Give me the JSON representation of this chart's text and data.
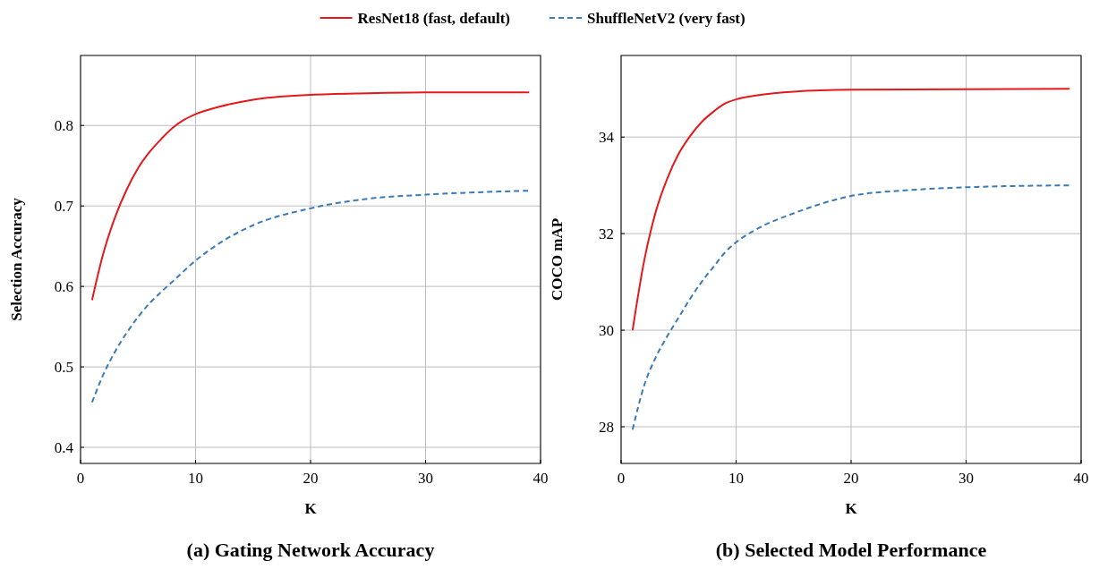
{
  "chart_data": [
    {
      "type": "line",
      "title": "(a) Gating Network Accuracy",
      "xlabel": "K",
      "ylabel": "Selection Accuracy",
      "xlim": [
        0,
        40
      ],
      "xticks": [
        0,
        10,
        20,
        30,
        40
      ],
      "ylim": [
        0.38,
        0.887
      ],
      "yticks": [
        0.4,
        0.5,
        0.6,
        0.7,
        0.8
      ],
      "grid": true,
      "legend": "top",
      "series": [
        {
          "name": "ResNet18 (fast, default)",
          "color": "#e3191c",
          "line_style": "solid",
          "x": [
            1,
            2,
            3,
            4,
            5,
            6,
            7,
            8,
            9,
            10,
            12,
            15,
            20,
            25,
            30,
            39
          ],
          "values": [
            0.583,
            0.642,
            0.686,
            0.72,
            0.747,
            0.767,
            0.783,
            0.797,
            0.807,
            0.814,
            0.823,
            0.832,
            0.838,
            0.84,
            0.841,
            0.841
          ]
        },
        {
          "name": "ShuffleNetV2 (very fast)",
          "color": "#3a7ab5",
          "line_style": "dashed",
          "x": [
            1,
            2,
            3,
            4,
            5,
            6,
            7,
            8,
            10,
            12,
            15,
            20,
            25,
            30,
            39
          ],
          "values": [
            0.456,
            0.491,
            0.519,
            0.542,
            0.562,
            0.579,
            0.593,
            0.606,
            0.632,
            0.653,
            0.676,
            0.697,
            0.709,
            0.714,
            0.719
          ]
        }
      ]
    },
    {
      "type": "line",
      "title": "(b) Selected Model Performance",
      "xlabel": "K",
      "ylabel": "COCO mAP",
      "xlim": [
        0,
        40
      ],
      "xticks": [
        0,
        10,
        20,
        30,
        40
      ],
      "ylim": [
        27.24,
        35.69
      ],
      "yticks": [
        28,
        30,
        32,
        34
      ],
      "grid": true,
      "series": [
        {
          "color": "#e3191c",
          "line_style": "solid",
          "x": [
            1,
            2,
            3,
            4,
            5,
            6,
            7,
            8,
            9,
            10,
            12,
            15,
            20,
            39
          ],
          "values": [
            30.0,
            31.43,
            32.44,
            33.13,
            33.65,
            34.02,
            34.31,
            34.52,
            34.69,
            34.78,
            34.87,
            34.94,
            34.98,
            35.0
          ]
        },
        {
          "color": "#3a7ab5",
          "line_style": "dashed",
          "x": [
            1,
            2,
            3,
            4,
            5,
            6,
            7,
            8,
            9,
            10,
            12,
            15,
            20,
            25,
            30,
            39
          ],
          "values": [
            27.94,
            28.85,
            29.43,
            29.87,
            30.26,
            30.65,
            31.0,
            31.3,
            31.6,
            31.82,
            32.12,
            32.42,
            32.78,
            32.9,
            32.96,
            33.0
          ]
        }
      ]
    }
  ]
}
